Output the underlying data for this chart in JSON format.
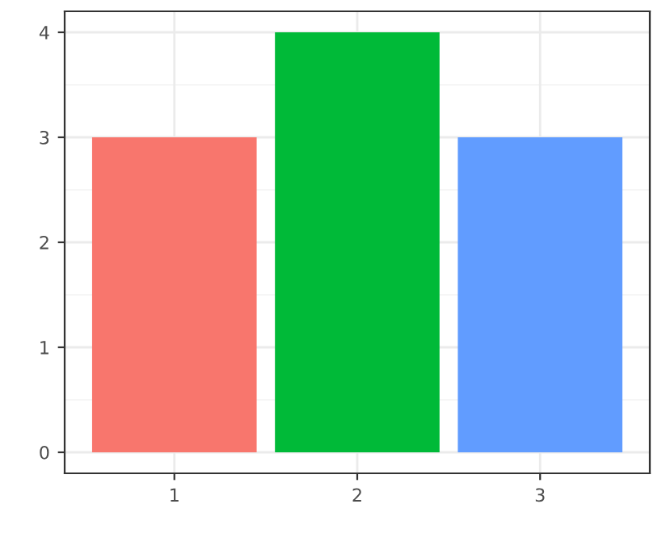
{
  "chart_data": {
    "type": "bar",
    "categories": [
      "1",
      "2",
      "3"
    ],
    "values": [
      3,
      4,
      3
    ],
    "colors": [
      "#f8766d",
      "#00ba38",
      "#619cff"
    ],
    "ylim": [
      -0.2,
      4.2
    ],
    "yticks": [
      0,
      1,
      2,
      3,
      4
    ],
    "grid": true
  }
}
